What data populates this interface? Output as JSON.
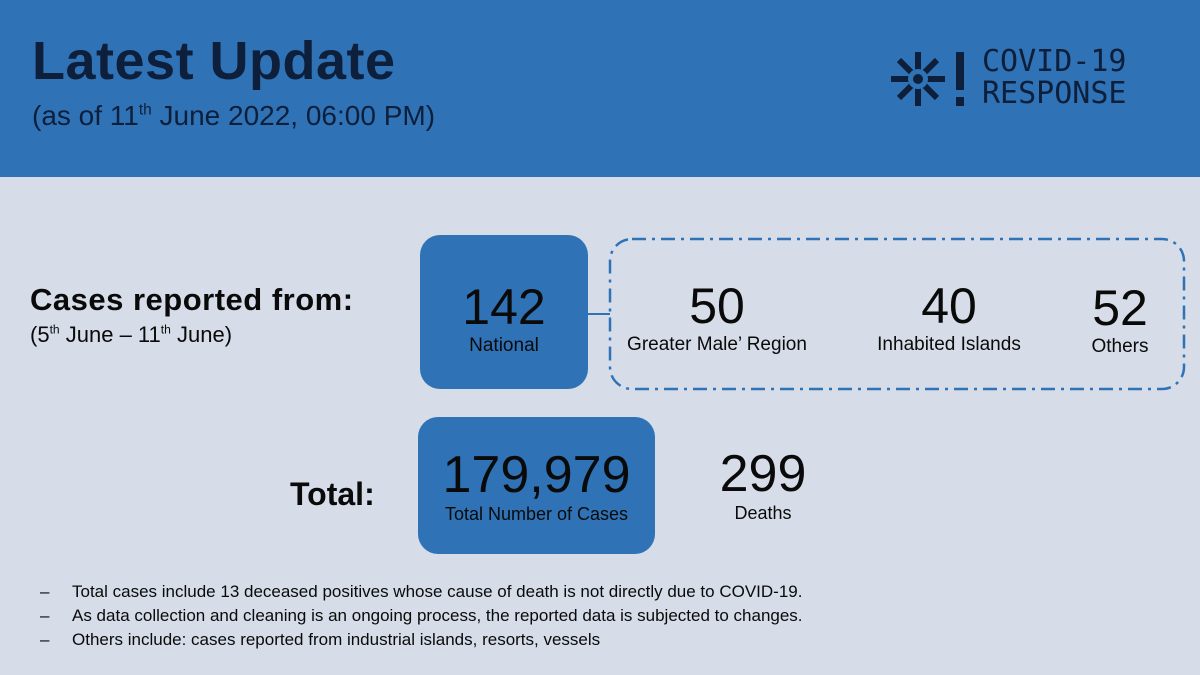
{
  "header": {
    "title": "Latest Update",
    "subtitle_prefix": "(as of 11",
    "subtitle_sup": "th",
    "subtitle_suffix": " June 2022, 06:00 PM)",
    "logo": {
      "icon": "snowflake-alert-icon",
      "line1": "COVID-19",
      "line2": "RESPONSE"
    }
  },
  "cases": {
    "label": "Cases reported from:",
    "range": {
      "start_day": "(5",
      "start_sup": "th",
      "middle": " June – 11",
      "end_sup": "th",
      "end": " June)"
    },
    "national": {
      "value": "142",
      "label": "National"
    },
    "breakdown": [
      {
        "value": "50",
        "label": "Greater Male’ Region"
      },
      {
        "value": "40",
        "label": "Inhabited Islands"
      },
      {
        "value": "52",
        "label": "Others"
      }
    ]
  },
  "total": {
    "label": "Total:",
    "cases": {
      "value": "179,979",
      "label": "Total Number of Cases"
    },
    "deaths": {
      "value": "299",
      "label": "Deaths"
    }
  },
  "notes": [
    "Total cases include 13 deceased positives whose cause of death is not directly due to COVID-19.",
    "As data collection and cleaning is an ongoing process, the reported data is subjected to changes.",
    "Others include: cases reported from industrial islands, resorts, vessels"
  ],
  "notes_bullet": "–",
  "colors": {
    "header_bg": "#2f73b6",
    "page_bg": "#d6dde8",
    "accent_box": "#2f73b6",
    "title_text": "#0d1f3a"
  }
}
